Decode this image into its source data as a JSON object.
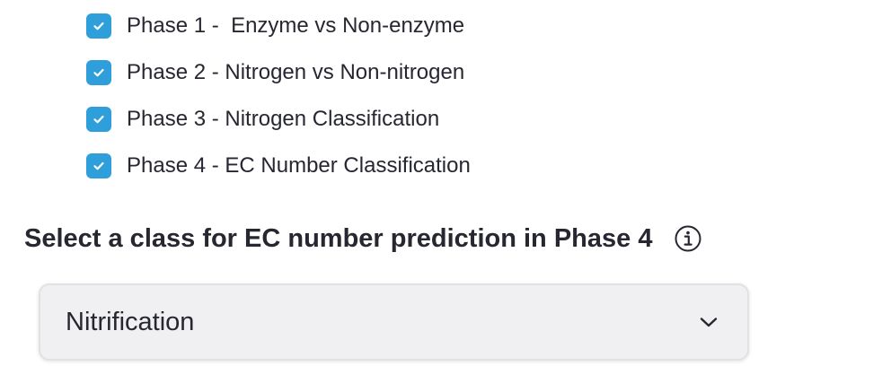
{
  "phases": [
    {
      "label": "Phase 1 -  Enzyme vs Non-enzyme",
      "checked": true
    },
    {
      "label": "Phase 2 - Nitrogen vs Non-nitrogen",
      "checked": true
    },
    {
      "label": "Phase 3 - Nitrogen Classification",
      "checked": true
    },
    {
      "label": "Phase 4 - EC Number Classification",
      "checked": true
    }
  ],
  "ec_class_select": {
    "label": "Select a class for EC number prediction in Phase 4",
    "info_icon": "info-icon",
    "selected_value": "Nitrification",
    "chevron_icon": "chevron-down-icon"
  },
  "colors": {
    "checkbox_fill": "#2e9fdb",
    "text": "#262730",
    "select_bg": "#f0f0f2"
  }
}
